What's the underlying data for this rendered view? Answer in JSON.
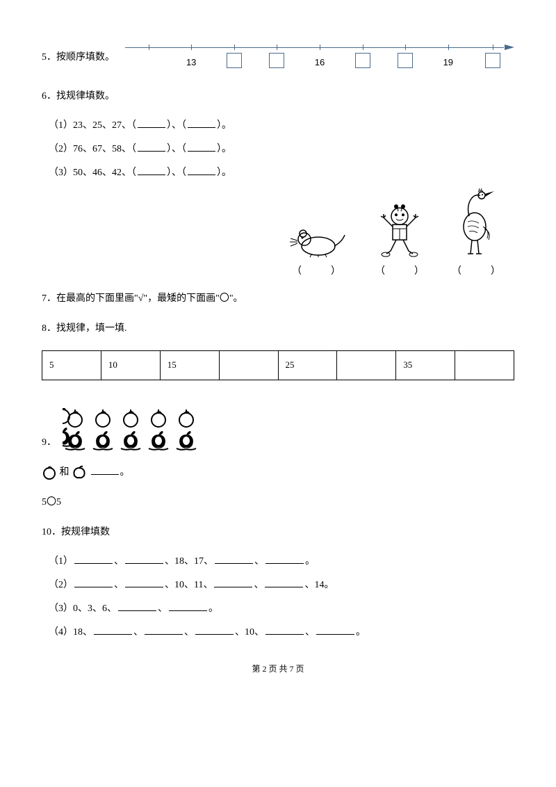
{
  "q5": {
    "num": "5",
    "text": "．按顺序填数。",
    "labels": [
      "13",
      "16",
      "19"
    ],
    "positions_label": [
      17,
      50,
      83
    ],
    "positions_box": [
      28,
      39,
      61,
      72,
      94.5
    ],
    "ticks": [
      6,
      17,
      28,
      39,
      50,
      61,
      72,
      83,
      94.5
    ]
  },
  "q6": {
    "num": "6",
    "text": "．找规律填数。",
    "subs": [
      "（1）23、25、27、（______）、（______）。",
      "（2）76、67、58、（______）、（______）。",
      "（3）50、46、42、（______）、（______）。"
    ]
  },
  "q7": {
    "num": "7",
    "text": "．在最高的下面里画\"√\"，最矮的下面画\"〇\"。",
    "paren": "（　　　）"
  },
  "q8": {
    "num": "8",
    "text": "．找规律，填一填.",
    "cells": [
      "5",
      "10",
      "15",
      "",
      "25",
      "",
      "35",
      ""
    ]
  },
  "q9": {
    "num": "9",
    "text": "．",
    "line2_mid": "和",
    "line2_end": "。",
    "line3": "5〇5"
  },
  "q10": {
    "num": "10",
    "text": "．按规律填数",
    "s1_pre": "（1）",
    "s1_mid1": "、",
    "s1_mid2": "、18、17、",
    "s1_mid3": "、",
    "s1_end": "。",
    "s2_pre": "（2）",
    "s2_mid1": "、",
    "s2_mid2": "、10、11、",
    "s2_mid3": "、",
    "s2_mid4": "、14。",
    "s3_pre": "（3）0、3、6、",
    "s3_mid": "、",
    "s3_end": "。",
    "s4_pre": "（4）18、",
    "s4_mid1": "、",
    "s4_mid2": "、",
    "s4_mid3": "、10、",
    "s4_mid4": "、",
    "s4_end": "。"
  },
  "footer": "第 2 页 共 7 页",
  "colors": {
    "line": "#4a6a8a"
  }
}
